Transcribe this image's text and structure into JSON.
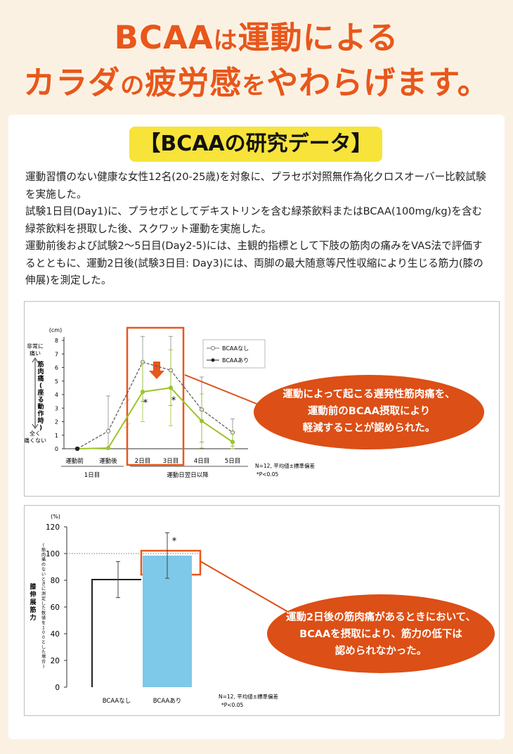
{
  "headline": {
    "line1_a": "BCAA",
    "line1_b": "は",
    "line1_c": "運動による",
    "line2_a": "カラダ",
    "line2_b": "の",
    "line2_c": "疲労感",
    "line2_d": "を",
    "line2_e": "やわらげます。"
  },
  "section_title": "【BCAAの研究データ】",
  "intro": [
    "運動習慣のない健康な女性12名(20-25歳)を対象に、プラセボ対照無作為化クロスオーバー比較試験を実施した。",
    "試験1日目(Day1)に、プラセボとしてデキストリンを含む緑茶飲料またはBCAA(100mg/kg)を含む緑茶飲料を摂取した後、スクワット運動を実施した。",
    "運動前後および試験2～5日目(Day2-5)には、主観的指標として下肢の筋肉の痛みをVAS法で評価するとともに、運動2日後(試験3日目: Day3)には、両脚の最大随意等尺性収縮により生じる筋力(膝の伸展)を測定した。"
  ],
  "colors": {
    "accent": "#e8571b",
    "callout": "#dc4f16",
    "green": "#9cc526",
    "bar_blue": "#7ec8ea",
    "pill": "#f7e33a"
  },
  "chart_data": [
    {
      "type": "line",
      "unit": "(cm)",
      "ylabel": "筋肉痛(座る動作時)",
      "ylabel_top": [
        "非常に",
        "痛い"
      ],
      "ylabel_bottom": [
        "全く",
        "痛くない"
      ],
      "ylim": [
        0,
        8
      ],
      "yticks": [
        "0",
        "1",
        "2",
        "3",
        "4",
        "5",
        "6",
        "7",
        "8"
      ],
      "categories": [
        "運動前",
        "運動後",
        "2日目",
        "3日目",
        "4日目",
        "5日目"
      ],
      "group_labels": [
        "1日目",
        "運動日翌日以降"
      ],
      "series": [
        {
          "name": "BCAAなし",
          "values": [
            0,
            1.3,
            6.4,
            5.8,
            2.9,
            1.2
          ],
          "err": [
            0,
            2.6,
            2.9,
            2.6,
            2.4,
            1.0
          ]
        },
        {
          "name": "BCAAあり",
          "values": [
            0,
            0.05,
            4.2,
            4.5,
            2.05,
            0.5
          ],
          "err": [
            0,
            0,
            2.2,
            2.8,
            2.0,
            0.8
          ]
        }
      ],
      "significance": [
        "*",
        "*"
      ],
      "note": [
        "N=12, 平均値±標準偏差",
        "*P<0.05"
      ],
      "callout": [
        "運動によって起こる遅発性筋肉痛を、",
        "運動前のBCAA摂取により",
        "軽減することが認められた。"
      ]
    },
    {
      "type": "bar",
      "unit": "(%)",
      "ylabel": "膝伸展筋力",
      "ylabel_note": "(筋肉痛のないときに測定した数値を100とした場合)",
      "ylim": [
        0,
        120
      ],
      "yticks": [
        "0",
        "20",
        "40",
        "60",
        "80",
        "100",
        "120"
      ],
      "categories": [
        "BCAAなし",
        "BCAAあり"
      ],
      "values": [
        80.5,
        98.5
      ],
      "err": [
        13.5,
        17
      ],
      "reference_line": 100,
      "significance": "*",
      "note": [
        "N=12, 平均値±標準偏差",
        "*P<0.05"
      ],
      "callout": [
        "運動2日後の筋肉痛があるときにおいて、",
        "BCAAを摂取により、筋力の低下は",
        "認められなかった。"
      ]
    }
  ]
}
